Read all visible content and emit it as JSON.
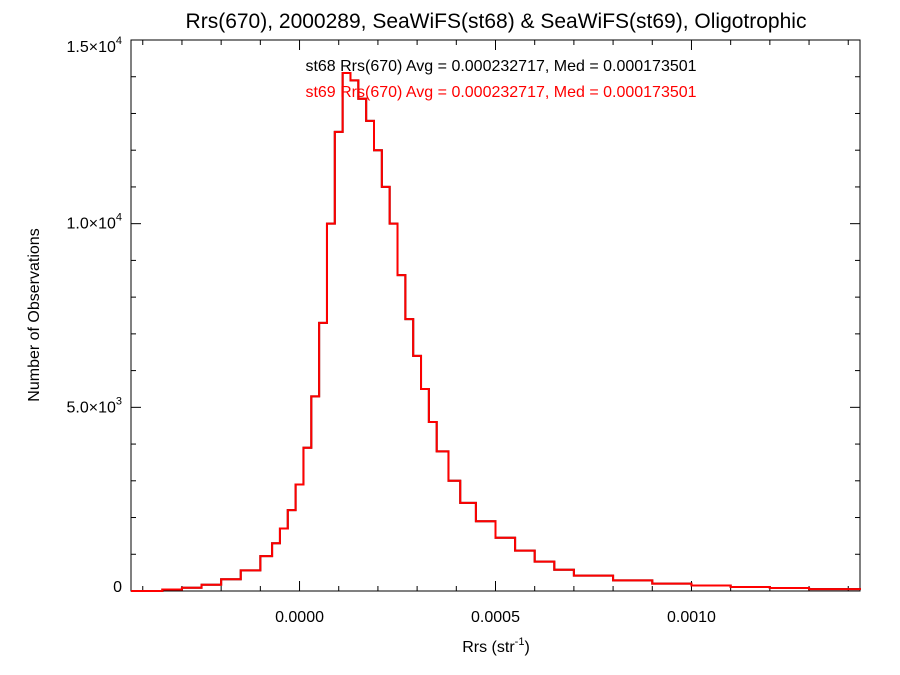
{
  "chart_data": {
    "type": "histogram",
    "title": "Rrs(670), 2000289, SeaWiFS(st68) & SeaWiFS(st69), Oligotrophic",
    "xlabel": "Rrs (str",
    "xlabel_superscript": "-1",
    "xlabel_suffix": ")",
    "ylabel": "Number of Observations",
    "xlim": [
      -0.00043,
      0.00143
    ],
    "ylim": [
      0,
      15000
    ],
    "x_ticks": [
      {
        "value": 0.0,
        "label": "0.0000"
      },
      {
        "value": 0.0005,
        "label": "0.0005"
      },
      {
        "value": 0.001,
        "label": "0.0010"
      }
    ],
    "y_ticks": [
      {
        "value": 0,
        "label": "0"
      },
      {
        "value": 5000,
        "label": "5.0×10",
        "exp": "3"
      },
      {
        "value": 10000,
        "label": "1.0×10",
        "exp": "4"
      },
      {
        "value": 15000,
        "label": "1.5×10",
        "exp": "4"
      }
    ],
    "annotations": [
      {
        "text": "st68 Rrs(670) Avg = 0.000232717, Med = 0.000173501",
        "color": "#000000"
      },
      {
        "text": "st69 Rrs(670) Avg = 0.000232717, Med = 0.000173501",
        "color": "#ff0000"
      }
    ],
    "series": [
      {
        "name": "st68",
        "color": "#000000",
        "points": [
          [
            -0.00043,
            0
          ],
          [
            -0.00035,
            40
          ],
          [
            -0.0003,
            90
          ],
          [
            -0.00025,
            170
          ],
          [
            -0.0002,
            320
          ],
          [
            -0.00015,
            560
          ],
          [
            -0.0001,
            950
          ],
          [
            -7e-05,
            1300
          ],
          [
            -5e-05,
            1700
          ],
          [
            -3e-05,
            2200
          ],
          [
            -1e-05,
            2900
          ],
          [
            1e-05,
            3900
          ],
          [
            3e-05,
            5300
          ],
          [
            5e-05,
            7300
          ],
          [
            7e-05,
            10000
          ],
          [
            9e-05,
            12500
          ],
          [
            0.00011,
            14100
          ],
          [
            0.00013,
            13900
          ],
          [
            0.00015,
            13400
          ],
          [
            0.00017,
            12800
          ],
          [
            0.00019,
            12000
          ],
          [
            0.00021,
            11000
          ],
          [
            0.00023,
            10000
          ],
          [
            0.00025,
            8600
          ],
          [
            0.00027,
            7400
          ],
          [
            0.00029,
            6400
          ],
          [
            0.00031,
            5500
          ],
          [
            0.00033,
            4600
          ],
          [
            0.00035,
            3800
          ],
          [
            0.00038,
            3000
          ],
          [
            0.00041,
            2400
          ],
          [
            0.00045,
            1900
          ],
          [
            0.0005,
            1450
          ],
          [
            0.00055,
            1100
          ],
          [
            0.0006,
            800
          ],
          [
            0.00065,
            580
          ],
          [
            0.0007,
            420
          ],
          [
            0.0008,
            290
          ],
          [
            0.0009,
            200
          ],
          [
            0.001,
            150
          ],
          [
            0.0011,
            110
          ],
          [
            0.0012,
            80
          ],
          [
            0.0013,
            50
          ],
          [
            0.00143,
            30
          ]
        ]
      },
      {
        "name": "st69",
        "color": "#ff0000",
        "points": [
          [
            -0.00043,
            0
          ],
          [
            -0.00035,
            40
          ],
          [
            -0.0003,
            90
          ],
          [
            -0.00025,
            170
          ],
          [
            -0.0002,
            320
          ],
          [
            -0.00015,
            560
          ],
          [
            -0.0001,
            950
          ],
          [
            -7e-05,
            1300
          ],
          [
            -5e-05,
            1700
          ],
          [
            -3e-05,
            2200
          ],
          [
            -1e-05,
            2900
          ],
          [
            1e-05,
            3900
          ],
          [
            3e-05,
            5300
          ],
          [
            5e-05,
            7300
          ],
          [
            7e-05,
            10000
          ],
          [
            9e-05,
            12500
          ],
          [
            0.00011,
            14100
          ],
          [
            0.00013,
            13900
          ],
          [
            0.00015,
            13400
          ],
          [
            0.00017,
            12800
          ],
          [
            0.00019,
            12000
          ],
          [
            0.00021,
            11000
          ],
          [
            0.00023,
            10000
          ],
          [
            0.00025,
            8600
          ],
          [
            0.00027,
            7400
          ],
          [
            0.00029,
            6400
          ],
          [
            0.00031,
            5500
          ],
          [
            0.00033,
            4600
          ],
          [
            0.00035,
            3800
          ],
          [
            0.00038,
            3000
          ],
          [
            0.00041,
            2400
          ],
          [
            0.00045,
            1900
          ],
          [
            0.0005,
            1450
          ],
          [
            0.00055,
            1100
          ],
          [
            0.0006,
            800
          ],
          [
            0.00065,
            580
          ],
          [
            0.0007,
            420
          ],
          [
            0.0008,
            290
          ],
          [
            0.0009,
            200
          ],
          [
            0.001,
            150
          ],
          [
            0.0011,
            110
          ],
          [
            0.0012,
            80
          ],
          [
            0.0013,
            50
          ],
          [
            0.00143,
            30
          ]
        ]
      }
    ]
  }
}
